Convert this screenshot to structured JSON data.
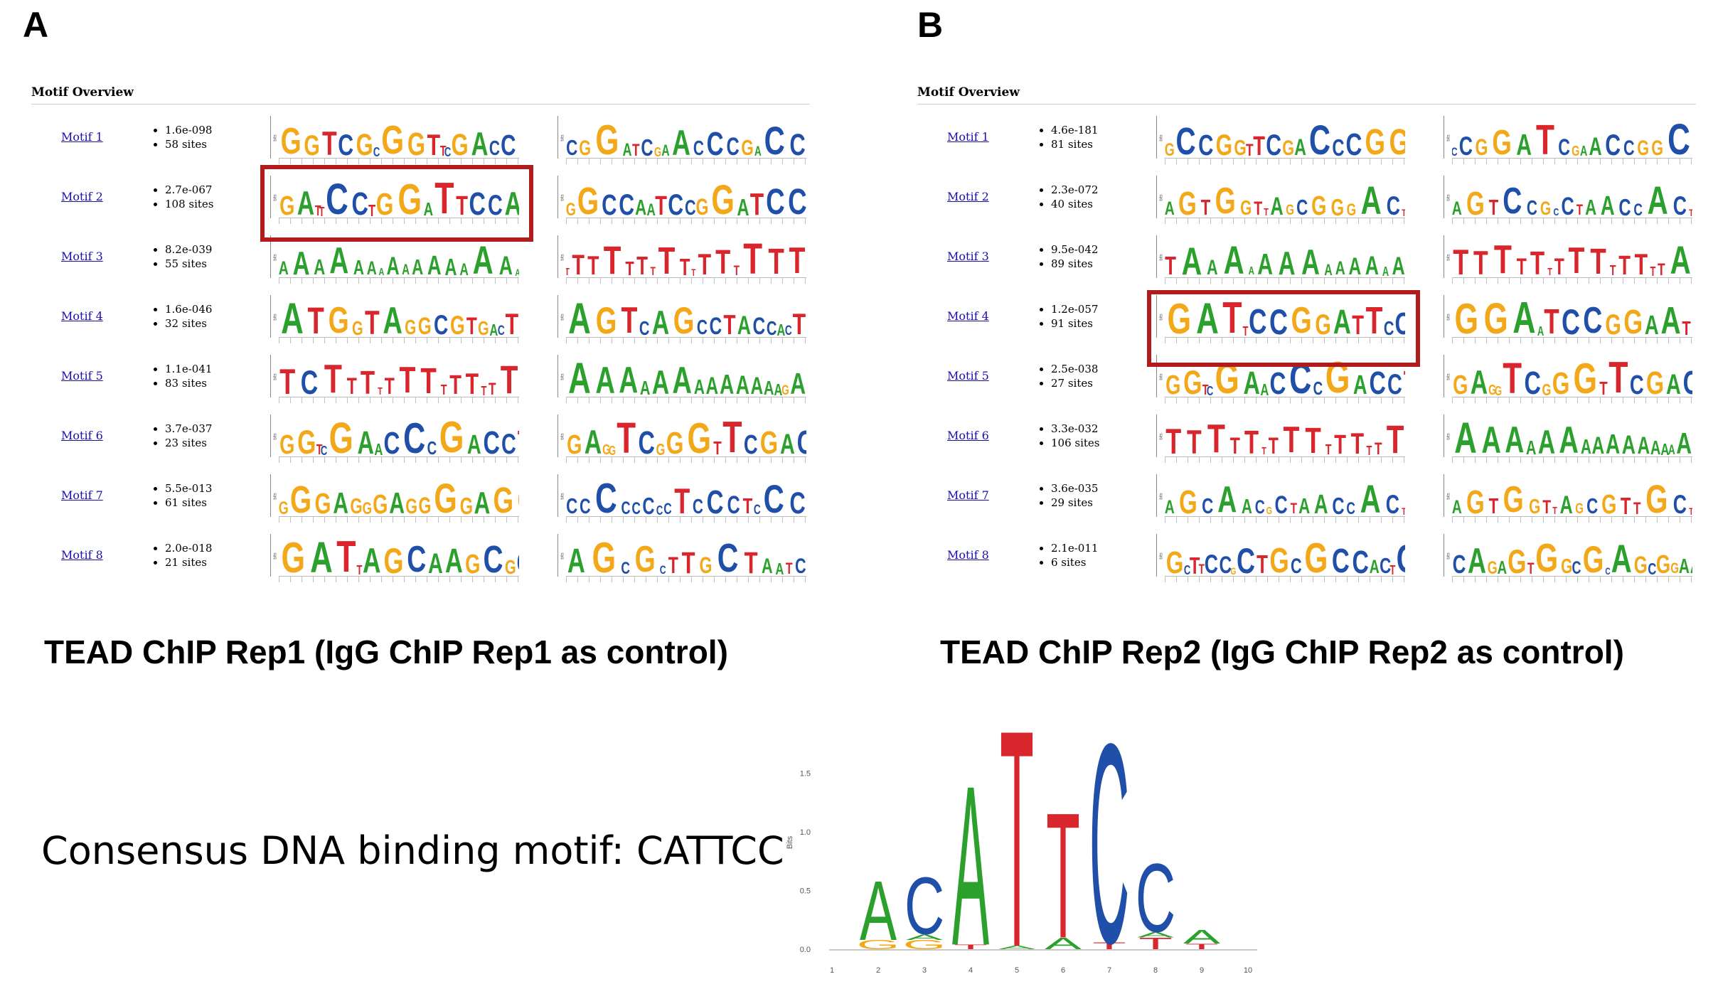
{
  "panels": [
    {
      "letter": "A",
      "overview_title": "Motif Overview",
      "caption": "TEAD ChIP Rep1 (IgG ChIP Rep1 as control)",
      "motifs": [
        {
          "label": "Motif 1",
          "evalue": "1.6e-098",
          "sites": "58 sites",
          "fwd": "GGTCGCGGTTCGACCCG",
          "rev": "CGGATCGAACCCGACC"
        },
        {
          "label": "Motif 2",
          "evalue": "2.7e-067",
          "sites": "108 sites",
          "fwd": "GATTCCTGGATTCCAA",
          "rev": "GGCCAATCCGGATCC"
        },
        {
          "label": "Motif 3",
          "evalue": "8.2e-039",
          "sites": "55 sites",
          "fwd": "AAAAAAAAAAAAAAAA",
          "rev": "TTTTTTTTTTTTTTTT"
        },
        {
          "label": "Motif 4",
          "evalue": "1.6e-046",
          "sites": "32 sites",
          "fwd": "ATGGTAGGCGTGACT",
          "rev": "AGTCAGCCTACCACT"
        },
        {
          "label": "Motif 5",
          "evalue": "1.1e-041",
          "sites": "83 sites",
          "fwd": "TCTTTTTTTTTTTTT",
          "rev": "AAAAAAAAAAAAAGA"
        },
        {
          "label": "Motif 6",
          "evalue": "3.7e-037",
          "sites": "23 sites",
          "fwd": "GGTCGAACCCGACCTC",
          "rev": "GAGGTCGGGTTCGACC"
        },
        {
          "label": "Motif 7",
          "evalue": "5.5e-013",
          "sites": "61 sites",
          "fwd": "GGGAGGGAGGGGAGG",
          "rev": "CCCCCCCCTCCCTCCC"
        },
        {
          "label": "Motif 8",
          "evalue": "2.0e-018",
          "sites": "21 sites",
          "fwd": "GATTAGCAAGCGCT",
          "rev": "AGCGCTTGCTAATC"
        }
      ]
    },
    {
      "letter": "B",
      "overview_title": "Motif Overview",
      "caption": "TEAD ChIP Rep2 (IgG ChIP Rep2 as control)",
      "motifs": [
        {
          "label": "Motif 1",
          "evalue": "4.6e-181",
          "sites": "81 sites",
          "fwd": "GCCGGTTCGACCCGG",
          "rev": "CCGGATCGAACCGGC"
        },
        {
          "label": "Motif 2",
          "evalue": "2.3e-072",
          "sites": "40 sites",
          "fwd": "AGTGGTTAGCGGGACT",
          "rev": "AGTCCGCCTAACCACT"
        },
        {
          "label": "Motif 3",
          "evalue": "9.5e-042",
          "sites": "89 sites",
          "fwd": "TAAAAAAAAAAAAA",
          "rev": "TTTTTTTTTTTTTTA"
        },
        {
          "label": "Motif 4",
          "evalue": "1.2e-057",
          "sites": "91 sites",
          "fwd": "GATTCCGGATTCCA",
          "rev": "GGAATCCGGAATCC"
        },
        {
          "label": "Motif 5",
          "evalue": "2.5e-038",
          "sites": "27 sites",
          "fwd": "GGTCGAACCCGACCTC",
          "rev": "GAGGTCGGGTTCGACC"
        },
        {
          "label": "Motif 6",
          "evalue": "3.3e-032",
          "sites": "106 sites",
          "fwd": "TTTTTTTTTTTTTTT",
          "rev": "AAAAAAAAAAAAAAA"
        },
        {
          "label": "Motif 7",
          "evalue": "3.6e-035",
          "sites": "29 sites",
          "fwd": "AGCAACGCTAACCACT",
          "rev": "AGTGGTTAGCGTTGCT"
        },
        {
          "label": "Motif 8",
          "evalue": "2.1e-011",
          "sites": "6 sites",
          "fwd": "GCTTCCGCTGCGCCACTCTG",
          "rev": "CAGAGTGGCGCAGCGGAAGC"
        }
      ]
    }
  ],
  "consensus_text": "Consensus DNA binding motif: CATTCC",
  "base_colors": {
    "A": "#2ca02c",
    "C": "#1f4fa8",
    "G": "#f2a818",
    "T": "#d9262c"
  },
  "chart_data": {
    "type": "sequence-logo",
    "ylabel": "Bits",
    "yticks": [
      "0.0",
      "0.5",
      "1.0",
      "1.5"
    ],
    "ylim": [
      0,
      2
    ],
    "xticks": [
      "1",
      "2",
      "3",
      "4",
      "5",
      "6",
      "7",
      "8",
      "9",
      "10"
    ],
    "positions": [
      {
        "pos": 1,
        "stack": []
      },
      {
        "pos": 2,
        "stack": [
          {
            "base": "G",
            "bits": 0.08
          },
          {
            "base": "A",
            "bits": 0.52
          }
        ]
      },
      {
        "pos": 3,
        "stack": [
          {
            "base": "G",
            "bits": 0.08
          },
          {
            "base": "A",
            "bits": 0.05
          },
          {
            "base": "C",
            "bits": 0.5
          }
        ]
      },
      {
        "pos": 4,
        "stack": [
          {
            "base": "T",
            "bits": 0.04
          },
          {
            "base": "A",
            "bits": 1.4
          }
        ]
      },
      {
        "pos": 5,
        "stack": [
          {
            "base": "A",
            "bits": 0.03
          },
          {
            "base": "T",
            "bits": 1.9
          }
        ]
      },
      {
        "pos": 6,
        "stack": [
          {
            "base": "A",
            "bits": 0.1
          },
          {
            "base": "T",
            "bits": 1.1
          }
        ]
      },
      {
        "pos": 7,
        "stack": [
          {
            "base": "T",
            "bits": 0.06
          },
          {
            "base": "C",
            "bits": 1.75
          }
        ]
      },
      {
        "pos": 8,
        "stack": [
          {
            "base": "T",
            "bits": 0.1
          },
          {
            "base": "A",
            "bits": 0.05
          },
          {
            "base": "C",
            "bits": 0.6
          }
        ]
      },
      {
        "pos": 9,
        "stack": [
          {
            "base": "T",
            "bits": 0.05
          },
          {
            "base": "A",
            "bits": 0.12
          }
        ]
      },
      {
        "pos": 10,
        "stack": []
      }
    ]
  }
}
